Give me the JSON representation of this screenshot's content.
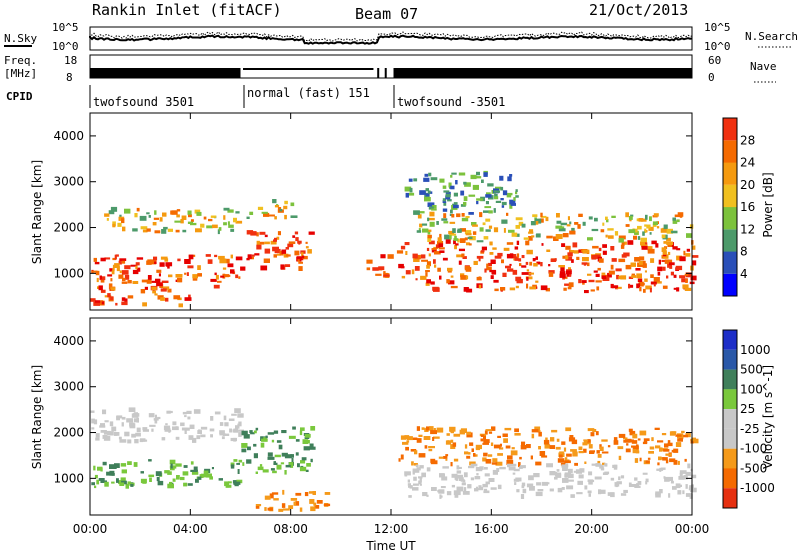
{
  "header": {
    "station": "Rankin Inlet (fitACF)",
    "beam": "Beam 07",
    "date": "21/Oct/2013"
  },
  "noise_panel": {
    "left_label": "N.Sky",
    "right_label": "N.Search",
    "left_ticks": [
      "10^5",
      "10^0"
    ],
    "right_ticks": [
      "10^5",
      "10^0"
    ]
  },
  "freq_panel": {
    "left_label_1": "Freq.",
    "left_label_2": "[MHz]",
    "right_label": "Nave",
    "left_ticks": [
      "18",
      "8"
    ],
    "right_ticks": [
      "60",
      "0"
    ]
  },
  "cpid": {
    "label": "CPID",
    "modes": [
      {
        "name": "twofsound 3501",
        "start": "00:00",
        "end": "06:00"
      },
      {
        "name": "normal (fast) 151",
        "start": "06:00",
        "end": "12:00"
      },
      {
        "name": "twofsound -3501",
        "start": "12:00",
        "end": "24:00"
      }
    ]
  },
  "colors": {
    "power": [
      "#0000ff",
      "#2a4fb8",
      "#4c9a6a",
      "#7cc23c",
      "#f0c020",
      "#f59a0f",
      "#f56a00",
      "#f03010",
      "#e60000"
    ],
    "velocity": [
      "#1d2ec8",
      "#2a58a8",
      "#3f7f5a",
      "#7ac83c",
      "#c8c8c8",
      "#c8c8c8",
      "#f59a1a",
      "#f56a00",
      "#e63010",
      "#e60000"
    ],
    "grey_band": "#c0c0c0"
  },
  "chart_data": [
    {
      "type": "heatmap",
      "title": "",
      "xlabel": "",
      "ylabel": "Slant Range [km]",
      "ylim": [
        200,
        4500
      ],
      "yticks": [
        "1000",
        "2000",
        "3000",
        "4000"
      ],
      "colorbar_label": "Power [dB]",
      "colorbar_ticks": [
        "4",
        "8",
        "12",
        "16",
        "20",
        "24",
        "28"
      ],
      "regions": [
        {
          "t0": 0.0,
          "t1": 6.0,
          "r0": 700,
          "r1": 1400,
          "level": "strong"
        },
        {
          "t0": 0.5,
          "t1": 5.8,
          "r0": 1900,
          "r1": 2400,
          "level": "medium"
        },
        {
          "t0": 0.0,
          "t1": 4.0,
          "r0": 300,
          "r1": 700,
          "level": "strong"
        },
        {
          "t0": 6.0,
          "t1": 8.8,
          "r0": 1100,
          "r1": 1900,
          "level": "strong"
        },
        {
          "t0": 6.2,
          "t1": 8.0,
          "r0": 2200,
          "r1": 2600,
          "level": "medium"
        },
        {
          "t0": 11.0,
          "t1": 12.0,
          "r0": 900,
          "r1": 1400,
          "level": "strong"
        },
        {
          "t0": 12.2,
          "t1": 24.0,
          "r0": 600,
          "r1": 1700,
          "level": "strong"
        },
        {
          "t0": 13.0,
          "t1": 24.0,
          "r0": 1700,
          "r1": 2300,
          "level": "medium"
        },
        {
          "t0": 12.5,
          "t1": 17.0,
          "r0": 2300,
          "r1": 3200,
          "level": "weak"
        }
      ]
    },
    {
      "type": "heatmap",
      "title": "",
      "xlabel": "Time UT",
      "ylabel": "Slant Range [km]",
      "ylim": [
        200,
        4500
      ],
      "yticks": [
        "1000",
        "2000",
        "3000",
        "4000"
      ],
      "xticks": [
        "00:00",
        "04:00",
        "08:00",
        "12:00",
        "16:00",
        "20:00",
        "00:00"
      ],
      "colorbar_label": "Velocity [m s^-1]",
      "colorbar_ticks": [
        "1000",
        "500",
        "100",
        "25",
        "-25",
        "-100",
        "-500",
        "-1000"
      ],
      "regions": [
        {
          "t0": 0.0,
          "t1": 6.0,
          "r0": 800,
          "r1": 1400,
          "level": "positive"
        },
        {
          "t0": 0.0,
          "t1": 6.0,
          "r0": 1800,
          "r1": 2500,
          "level": "zero"
        },
        {
          "t0": 6.0,
          "t1": 8.8,
          "r0": 1100,
          "r1": 2100,
          "level": "positive"
        },
        {
          "t0": 6.5,
          "t1": 9.5,
          "r0": 300,
          "r1": 700,
          "level": "negative"
        },
        {
          "t0": 12.2,
          "t1": 24.0,
          "r0": 1300,
          "r1": 2100,
          "level": "negative"
        },
        {
          "t0": 12.5,
          "t1": 24.0,
          "r0": 600,
          "r1": 1300,
          "level": "zero"
        }
      ]
    }
  ]
}
